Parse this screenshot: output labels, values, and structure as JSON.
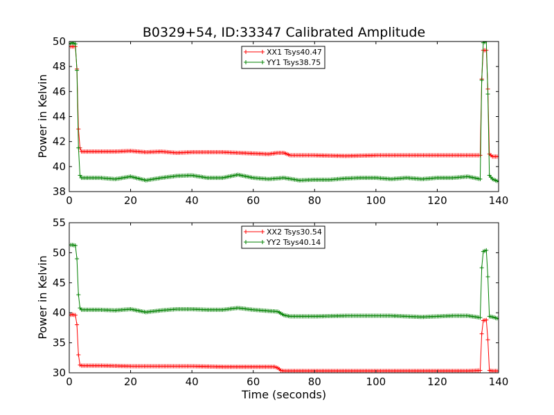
{
  "title": "B0329+54, ID:33347 Calibrated Amplitude",
  "chart_data": [
    {
      "type": "line",
      "ylabel": "Power in Kelvin",
      "xlabel": "",
      "xlim": [
        0,
        140
      ],
      "ylim": [
        38,
        50
      ],
      "xticks": [
        "0",
        "20",
        "40",
        "60",
        "80",
        "100",
        "120",
        "140"
      ],
      "yticks": [
        "38",
        "40",
        "42",
        "44",
        "46",
        "48",
        "50"
      ],
      "legend_position": "top-center",
      "series": [
        {
          "name": "XX1 Tsys40.47",
          "color": "#ff0000",
          "points": [
            [
              0,
              49.6
            ],
            [
              1,
              49.6
            ],
            [
              2,
              49.6
            ],
            [
              2.5,
              47.8
            ],
            [
              3,
              43.0
            ],
            [
              3.5,
              41.5
            ],
            [
              4,
              41.2
            ],
            [
              10,
              41.2
            ],
            [
              15,
              41.2
            ],
            [
              20,
              41.25
            ],
            [
              25,
              41.15
            ],
            [
              30,
              41.2
            ],
            [
              35,
              41.1
            ],
            [
              40,
              41.15
            ],
            [
              45,
              41.15
            ],
            [
              50,
              41.15
            ],
            [
              55,
              41.1
            ],
            [
              60,
              41.05
            ],
            [
              65,
              41.0
            ],
            [
              68,
              41.1
            ],
            [
              70,
              41.1
            ],
            [
              72,
              40.9
            ],
            [
              80,
              40.9
            ],
            [
              90,
              40.85
            ],
            [
              100,
              40.9
            ],
            [
              110,
              40.9
            ],
            [
              120,
              40.9
            ],
            [
              130,
              40.9
            ],
            [
              134,
              40.9
            ],
            [
              134.5,
              47.0
            ],
            [
              135,
              49.3
            ],
            [
              136,
              49.3
            ],
            [
              136.5,
              46.2
            ],
            [
              137,
              41.0
            ],
            [
              138,
              40.8
            ],
            [
              140,
              40.8
            ]
          ]
        },
        {
          "name": "YY1 Tsys38.75",
          "color": "#008000",
          "points": [
            [
              0,
              49.8
            ],
            [
              1,
              49.9
            ],
            [
              2,
              49.8
            ],
            [
              2.5,
              47.7
            ],
            [
              3,
              41.5
            ],
            [
              3.5,
              39.3
            ],
            [
              4,
              39.1
            ],
            [
              10,
              39.1
            ],
            [
              15,
              39.0
            ],
            [
              20,
              39.2
            ],
            [
              25,
              38.9
            ],
            [
              30,
              39.1
            ],
            [
              35,
              39.25
            ],
            [
              40,
              39.3
            ],
            [
              45,
              39.1
            ],
            [
              50,
              39.1
            ],
            [
              55,
              39.35
            ],
            [
              60,
              39.1
            ],
            [
              65,
              39.0
            ],
            [
              70,
              39.1
            ],
            [
              75,
              38.9
            ],
            [
              80,
              38.95
            ],
            [
              85,
              38.95
            ],
            [
              90,
              39.05
            ],
            [
              95,
              39.1
            ],
            [
              100,
              39.1
            ],
            [
              105,
              39.0
            ],
            [
              110,
              39.1
            ],
            [
              115,
              39.0
            ],
            [
              120,
              39.1
            ],
            [
              125,
              39.1
            ],
            [
              130,
              39.2
            ],
            [
              134,
              39.0
            ],
            [
              134.5,
              46.9
            ],
            [
              135,
              49.9
            ],
            [
              136,
              50.0
            ],
            [
              136.5,
              45.8
            ],
            [
              137,
              39.3
            ],
            [
              138,
              39.0
            ],
            [
              140,
              38.8
            ]
          ]
        }
      ]
    },
    {
      "type": "line",
      "ylabel": "Power in Kelvin",
      "xlabel": "Time (seconds)",
      "xlim": [
        0,
        140
      ],
      "ylim": [
        30,
        55
      ],
      "xticks": [
        "0",
        "20",
        "40",
        "60",
        "80",
        "100",
        "120",
        "140"
      ],
      "yticks": [
        "30",
        "35",
        "40",
        "45",
        "50",
        "55"
      ],
      "legend_position": "top-center",
      "series": [
        {
          "name": "XX2 Tsys30.54",
          "color": "#ff0000",
          "points": [
            [
              0,
              39.6
            ],
            [
              1,
              39.7
            ],
            [
              2,
              39.6
            ],
            [
              2.5,
              38.0
            ],
            [
              3,
              33.0
            ],
            [
              3.5,
              31.3
            ],
            [
              4,
              31.2
            ],
            [
              10,
              31.2
            ],
            [
              20,
              31.1
            ],
            [
              30,
              31.1
            ],
            [
              40,
              31.1
            ],
            [
              50,
              31.0
            ],
            [
              60,
              31.0
            ],
            [
              67,
              31.0
            ],
            [
              68,
              30.8
            ],
            [
              69,
              30.4
            ],
            [
              70,
              30.3
            ],
            [
              80,
              30.3
            ],
            [
              90,
              30.3
            ],
            [
              100,
              30.3
            ],
            [
              110,
              30.3
            ],
            [
              120,
              30.3
            ],
            [
              130,
              30.3
            ],
            [
              134,
              30.4
            ],
            [
              134.5,
              36.5
            ],
            [
              135,
              38.7
            ],
            [
              136,
              38.8
            ],
            [
              136.5,
              35.5
            ],
            [
              137,
              30.4
            ],
            [
              138,
              30.3
            ],
            [
              140,
              30.3
            ]
          ]
        },
        {
          "name": "YY2 Tsys40.14",
          "color": "#008000",
          "points": [
            [
              0,
              51.3
            ],
            [
              1,
              51.3
            ],
            [
              2,
              51.2
            ],
            [
              2.5,
              49.0
            ],
            [
              3,
              43.0
            ],
            [
              3.5,
              40.8
            ],
            [
              4,
              40.5
            ],
            [
              10,
              40.5
            ],
            [
              15,
              40.4
            ],
            [
              20,
              40.6
            ],
            [
              25,
              40.1
            ],
            [
              30,
              40.4
            ],
            [
              35,
              40.6
            ],
            [
              40,
              40.6
            ],
            [
              45,
              40.5
            ],
            [
              50,
              40.5
            ],
            [
              55,
              40.8
            ],
            [
              60,
              40.5
            ],
            [
              65,
              40.3
            ],
            [
              68,
              40.2
            ],
            [
              70,
              39.6
            ],
            [
              72,
              39.4
            ],
            [
              80,
              39.4
            ],
            [
              90,
              39.5
            ],
            [
              100,
              39.5
            ],
            [
              105,
              39.5
            ],
            [
              110,
              39.4
            ],
            [
              115,
              39.3
            ],
            [
              120,
              39.4
            ],
            [
              125,
              39.5
            ],
            [
              130,
              39.5
            ],
            [
              134,
              39.2
            ],
            [
              134.5,
              47.5
            ],
            [
              135,
              50.2
            ],
            [
              136,
              50.4
            ],
            [
              136.5,
              46.0
            ],
            [
              137,
              39.4
            ],
            [
              138,
              39.3
            ],
            [
              140,
              39.0
            ]
          ]
        }
      ]
    }
  ]
}
